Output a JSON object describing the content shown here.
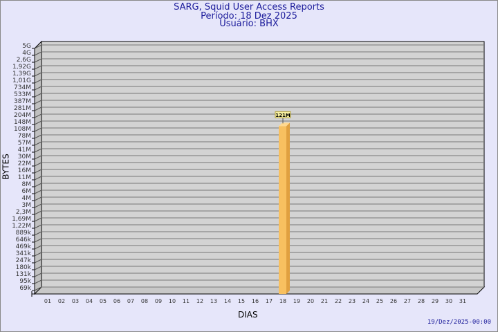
{
  "header": {
    "title": "SARG, Squid User Access Reports",
    "period": "Período: 18 Dez 2025",
    "user": "Usuário: BHX"
  },
  "footer": {
    "timestamp": "19/Dez/2025-00:00"
  },
  "chart_data": {
    "type": "bar",
    "title": "SARG, Squid User Access Reports",
    "xlabel": "DIAS",
    "ylabel": "BYTES",
    "y_scale": "log",
    "grid": true,
    "y_ticks": [
      "5G",
      "4G",
      "2,6G",
      "1,92G",
      "1,39G",
      "1,01G",
      "734M",
      "533M",
      "387M",
      "281M",
      "204M",
      "148M",
      "108M",
      "78M",
      "57M",
      "41M",
      "30M",
      "22M",
      "16M",
      "11M",
      "8M",
      "6M",
      "4M",
      "3M",
      "2,3M",
      "1,69M",
      "1,22M",
      "889k",
      "646k",
      "469k",
      "341k",
      "247k",
      "180k",
      "131k",
      "95k",
      "69k"
    ],
    "categories": [
      "01",
      "02",
      "03",
      "04",
      "05",
      "06",
      "07",
      "08",
      "09",
      "10",
      "11",
      "12",
      "13",
      "14",
      "15",
      "16",
      "17",
      "18",
      "19",
      "20",
      "21",
      "22",
      "23",
      "24",
      "25",
      "26",
      "27",
      "28",
      "29",
      "30",
      "31"
    ],
    "bars": [
      {
        "category": "18",
        "value": 121000000,
        "label": "121M"
      }
    ],
    "colors": {
      "bar": "#f8c060",
      "bar_side": "#e0a040",
      "plot": "#d3d3d3",
      "background": "#e6e6fa"
    }
  }
}
